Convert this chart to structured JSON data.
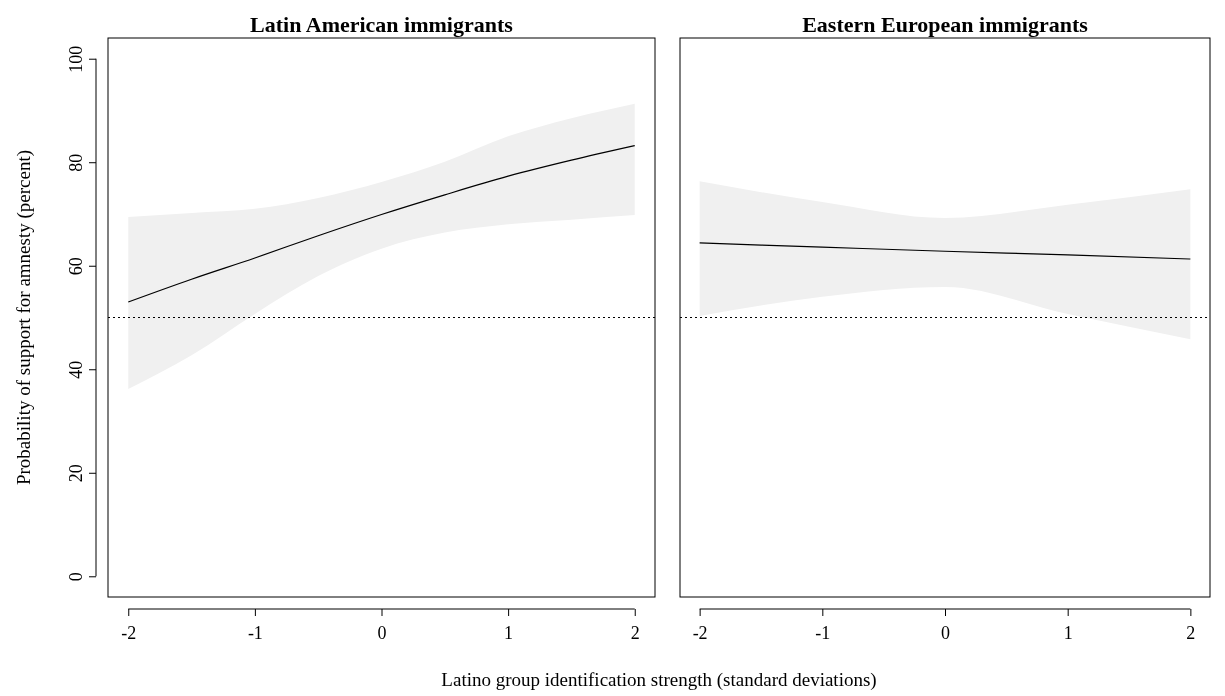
{
  "chart_data": [
    {
      "type": "line",
      "title": "Latin American immigrants",
      "xlabel": "Latino group identification strength (standard deviations)",
      "ylabel": "Probability of support for amnesty (percent)",
      "xlim": [
        -2.16,
        2.16
      ],
      "ylim": [
        -4,
        104
      ],
      "xticks": [
        -2,
        -1,
        0,
        1,
        2
      ],
      "yticks": [
        0,
        20,
        40,
        60,
        80,
        100
      ],
      "ref_lines": [
        {
          "axis": "y",
          "value": 50,
          "line_style": "dotted"
        }
      ],
      "series": [
        {
          "color": "#000000",
          "x": [
            -2,
            -1.5,
            -1,
            -0.5,
            0,
            0.5,
            1,
            1.5,
            2
          ],
          "values": [
            53.0,
            57.4,
            61.5,
            65.8,
            69.9,
            73.7,
            77.3,
            80.4,
            83.2
          ],
          "lower": [
            36.2,
            42.7,
            50.7,
            58.0,
            63.3,
            66.4,
            68.0,
            68.9,
            69.8
          ],
          "upper": [
            69.4,
            70.2,
            71.0,
            73.1,
            76.2,
            80.1,
            85.0,
            88.5,
            91.3
          ]
        }
      ]
    },
    {
      "type": "line",
      "title": "Eastern European immigrants",
      "xlim": [
        -2.16,
        2.16
      ],
      "ylim": [
        -4,
        104
      ],
      "xticks": [
        -2,
        -1,
        0,
        1,
        2
      ],
      "tick_labels": "x",
      "ref_lines": [
        {
          "axis": "y",
          "value": 50,
          "line_style": "dotted"
        }
      ],
      "series": [
        {
          "color": "#000000",
          "x": [
            -2,
            -1,
            0,
            1,
            2
          ],
          "values": [
            64.4,
            63.6,
            62.8,
            62.1,
            61.3
          ],
          "lower": [
            50.3,
            54.0,
            55.9,
            50.7,
            45.8
          ],
          "upper": [
            76.3,
            72.3,
            69.2,
            71.8,
            74.8
          ]
        }
      ]
    }
  ]
}
